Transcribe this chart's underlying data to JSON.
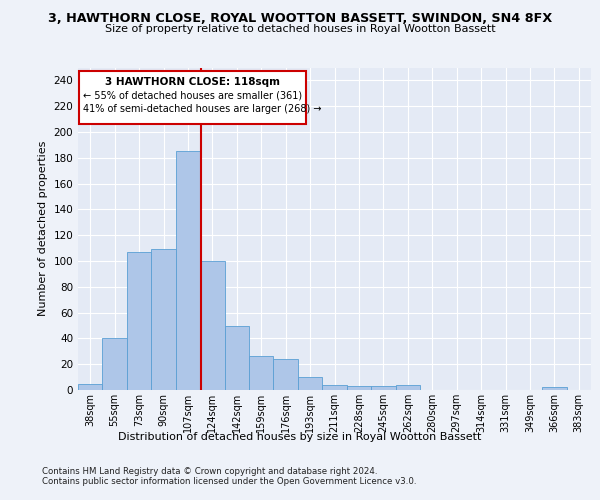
{
  "title": "3, HAWTHORN CLOSE, ROYAL WOOTTON BASSETT, SWINDON, SN4 8FX",
  "subtitle": "Size of property relative to detached houses in Royal Wootton Bassett",
  "xlabel": "Distribution of detached houses by size in Royal Wootton Bassett",
  "ylabel": "Number of detached properties",
  "categories": [
    "38sqm",
    "55sqm",
    "73sqm",
    "90sqm",
    "107sqm",
    "124sqm",
    "142sqm",
    "159sqm",
    "176sqm",
    "193sqm",
    "211sqm",
    "228sqm",
    "245sqm",
    "262sqm",
    "280sqm",
    "297sqm",
    "314sqm",
    "331sqm",
    "349sqm",
    "366sqm",
    "383sqm"
  ],
  "values": [
    5,
    40,
    107,
    109,
    185,
    100,
    50,
    26,
    24,
    10,
    4,
    3,
    3,
    4,
    0,
    0,
    0,
    0,
    0,
    2,
    0
  ],
  "bar_color": "#aec6e8",
  "bar_edge_color": "#5a9fd4",
  "ylim": [
    0,
    250
  ],
  "yticks": [
    0,
    20,
    40,
    60,
    80,
    100,
    120,
    140,
    160,
    180,
    200,
    220,
    240
  ],
  "property_label": "3 HAWTHORN CLOSE: 118sqm",
  "annotation_line1": "← 55% of detached houses are smaller (361)",
  "annotation_line2": "41% of semi-detached houses are larger (268) →",
  "vline_x_index": 4.55,
  "footnote1": "Contains HM Land Registry data © Crown copyright and database right 2024.",
  "footnote2": "Contains public sector information licensed under the Open Government Licence v3.0.",
  "bg_color": "#eef2f9",
  "plot_bg_color": "#e4eaf5",
  "grid_color": "#ffffff",
  "annotation_box_color": "#ffffff",
  "annotation_box_edge": "#cc0000",
  "vline_color": "#cc0000"
}
